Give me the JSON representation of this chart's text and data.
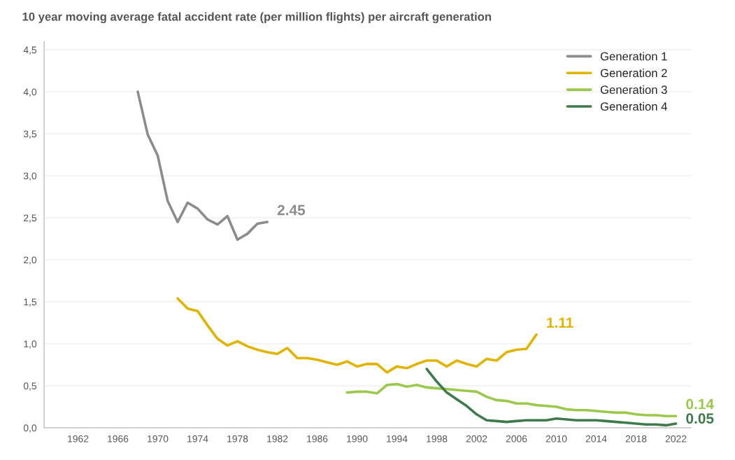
{
  "chart_data": {
    "type": "line",
    "title": "10 year moving average fatal accident rate (per million flights) per aircraft generation",
    "series": [
      {
        "name": "Generation 1",
        "color": "#8c8c8c",
        "x": [
          1968,
          1969,
          1970,
          1971,
          1972,
          1973,
          1974,
          1975,
          1976,
          1977,
          1978,
          1979,
          1980,
          1981
        ],
        "values": [
          4.0,
          3.49,
          3.24,
          2.7,
          2.45,
          2.68,
          2.61,
          2.48,
          2.42,
          2.52,
          2.24,
          2.31,
          2.43,
          2.45
        ]
      },
      {
        "name": "Generation 2",
        "color": "#e0b400",
        "x": [
          1972,
          1973,
          1974,
          1975,
          1976,
          1977,
          1978,
          1979,
          1980,
          1981,
          1982,
          1983,
          1984,
          1985,
          1986,
          1987,
          1988,
          1989,
          1990,
          1991,
          1992,
          1993,
          1994,
          1995,
          1996,
          1997,
          1998,
          1999,
          2000,
          2001,
          2002,
          2003,
          2004,
          2005,
          2006,
          2007,
          2008
        ],
        "values": [
          1.54,
          1.42,
          1.39,
          1.22,
          1.06,
          0.98,
          1.03,
          0.97,
          0.93,
          0.9,
          0.88,
          0.95,
          0.83,
          0.83,
          0.81,
          0.78,
          0.75,
          0.79,
          0.73,
          0.76,
          0.76,
          0.66,
          0.73,
          0.71,
          0.76,
          0.8,
          0.8,
          0.73,
          0.8,
          0.76,
          0.73,
          0.82,
          0.8,
          0.9,
          0.93,
          0.94,
          1.11
        ]
      },
      {
        "name": "Generation 3",
        "color": "#9cc84b",
        "x": [
          1989,
          1990,
          1991,
          1992,
          1993,
          1994,
          1995,
          1996,
          1997,
          1998,
          1999,
          2000,
          2001,
          2002,
          2003,
          2004,
          2005,
          2006,
          2007,
          2008,
          2009,
          2010,
          2011,
          2012,
          2013,
          2014,
          2015,
          2016,
          2017,
          2018,
          2019,
          2020,
          2021,
          2022
        ],
        "values": [
          0.42,
          0.43,
          0.43,
          0.41,
          0.51,
          0.52,
          0.49,
          0.51,
          0.48,
          0.47,
          0.46,
          0.45,
          0.44,
          0.43,
          0.37,
          0.33,
          0.32,
          0.29,
          0.29,
          0.27,
          0.26,
          0.25,
          0.22,
          0.21,
          0.21,
          0.2,
          0.19,
          0.18,
          0.18,
          0.16,
          0.15,
          0.15,
          0.14,
          0.14
        ]
      },
      {
        "name": "Generation 4",
        "color": "#3f7a4a",
        "x": [
          1997,
          1998,
          1999,
          2000,
          2001,
          2002,
          2003,
          2004,
          2005,
          2006,
          2007,
          2008,
          2009,
          2010,
          2011,
          2012,
          2013,
          2014,
          2015,
          2016,
          2017,
          2018,
          2019,
          2020,
          2021,
          2022
        ],
        "values": [
          0.7,
          0.55,
          0.42,
          0.34,
          0.26,
          0.16,
          0.09,
          0.08,
          0.07,
          0.08,
          0.09,
          0.09,
          0.09,
          0.11,
          0.1,
          0.09,
          0.09,
          0.09,
          0.08,
          0.07,
          0.06,
          0.05,
          0.04,
          0.04,
          0.03,
          0.05
        ]
      }
    ],
    "annotations": [
      {
        "text": "2.45",
        "x": 1981,
        "y": 2.45
      },
      {
        "text": "1.11",
        "x": 2008,
        "y": 1.11
      },
      {
        "text": "0.14",
        "x": 2022,
        "y": 0.14
      },
      {
        "text": "0.05",
        "x": 2022,
        "y": 0.05
      }
    ],
    "xlim": [
      1958.6,
      2023.5
    ],
    "xticks": [
      1962,
      1966,
      1970,
      1974,
      1978,
      1982,
      1986,
      1990,
      1994,
      1998,
      2002,
      2006,
      2010,
      2014,
      2018,
      2022
    ],
    "ylim": [
      0,
      4.6
    ],
    "yticks": [
      {
        "value": 0,
        "label": "0,0"
      },
      {
        "value": 0.5,
        "label": "0,5"
      },
      {
        "value": 1.0,
        "label": "1,0"
      },
      {
        "value": 1.5,
        "label": "1,5"
      },
      {
        "value": 2.0,
        "label": "2,0"
      },
      {
        "value": 2.5,
        "label": "2,5"
      },
      {
        "value": 3.0,
        "label": "3,0"
      },
      {
        "value": 3.5,
        "label": "3,5"
      },
      {
        "value": 4.0,
        "label": "4,0"
      },
      {
        "value": 4.5,
        "label": "4,5"
      }
    ],
    "grid": "y",
    "legend": "top right",
    "line_style": "solid",
    "marker": "none"
  }
}
